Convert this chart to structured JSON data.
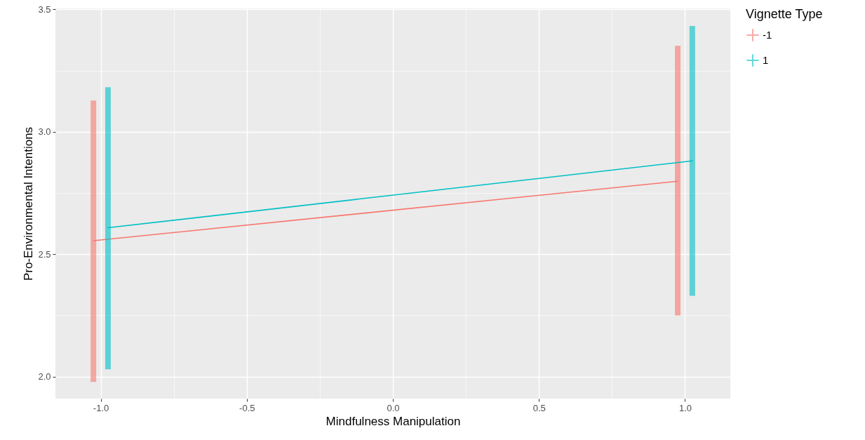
{
  "chart_data": {
    "type": "line",
    "xlabel": "Mindfulness Manipulation",
    "ylabel": "Pro-Environmental Intentions",
    "legend_title": "Vignette Type",
    "series": [
      {
        "name": "-1",
        "color": "#f8766d",
        "x": [
          -1.025,
          0.975
        ],
        "values": [
          2.555,
          2.798
        ],
        "errors": [
          [
            1.978,
            3.128
          ],
          [
            2.25,
            3.351
          ]
        ]
      },
      {
        "name": "1",
        "color": "#00bfc4",
        "x": [
          -0.975,
          1.025
        ],
        "values": [
          2.608,
          2.881
        ],
        "errors": [
          [
            2.03,
            3.182
          ],
          [
            2.33,
            3.432
          ]
        ]
      }
    ],
    "xlim": [
      -1.155,
      1.155
    ],
    "xticks": [
      {
        "value": -1,
        "label": "-1.0"
      },
      -0.5,
      {
        "value": 0,
        "label": "0.0"
      },
      0.5,
      {
        "value": 1,
        "label": "1.0"
      }
    ],
    "ylim": [
      1.91,
      3.504
    ],
    "yticks": [
      {
        "value": 2,
        "label": "2.0"
      },
      2.5,
      {
        "value": 3,
        "label": "3.0"
      },
      3.5
    ],
    "grid": true,
    "legend": "right",
    "marker": "none",
    "line_style": "solid"
  }
}
